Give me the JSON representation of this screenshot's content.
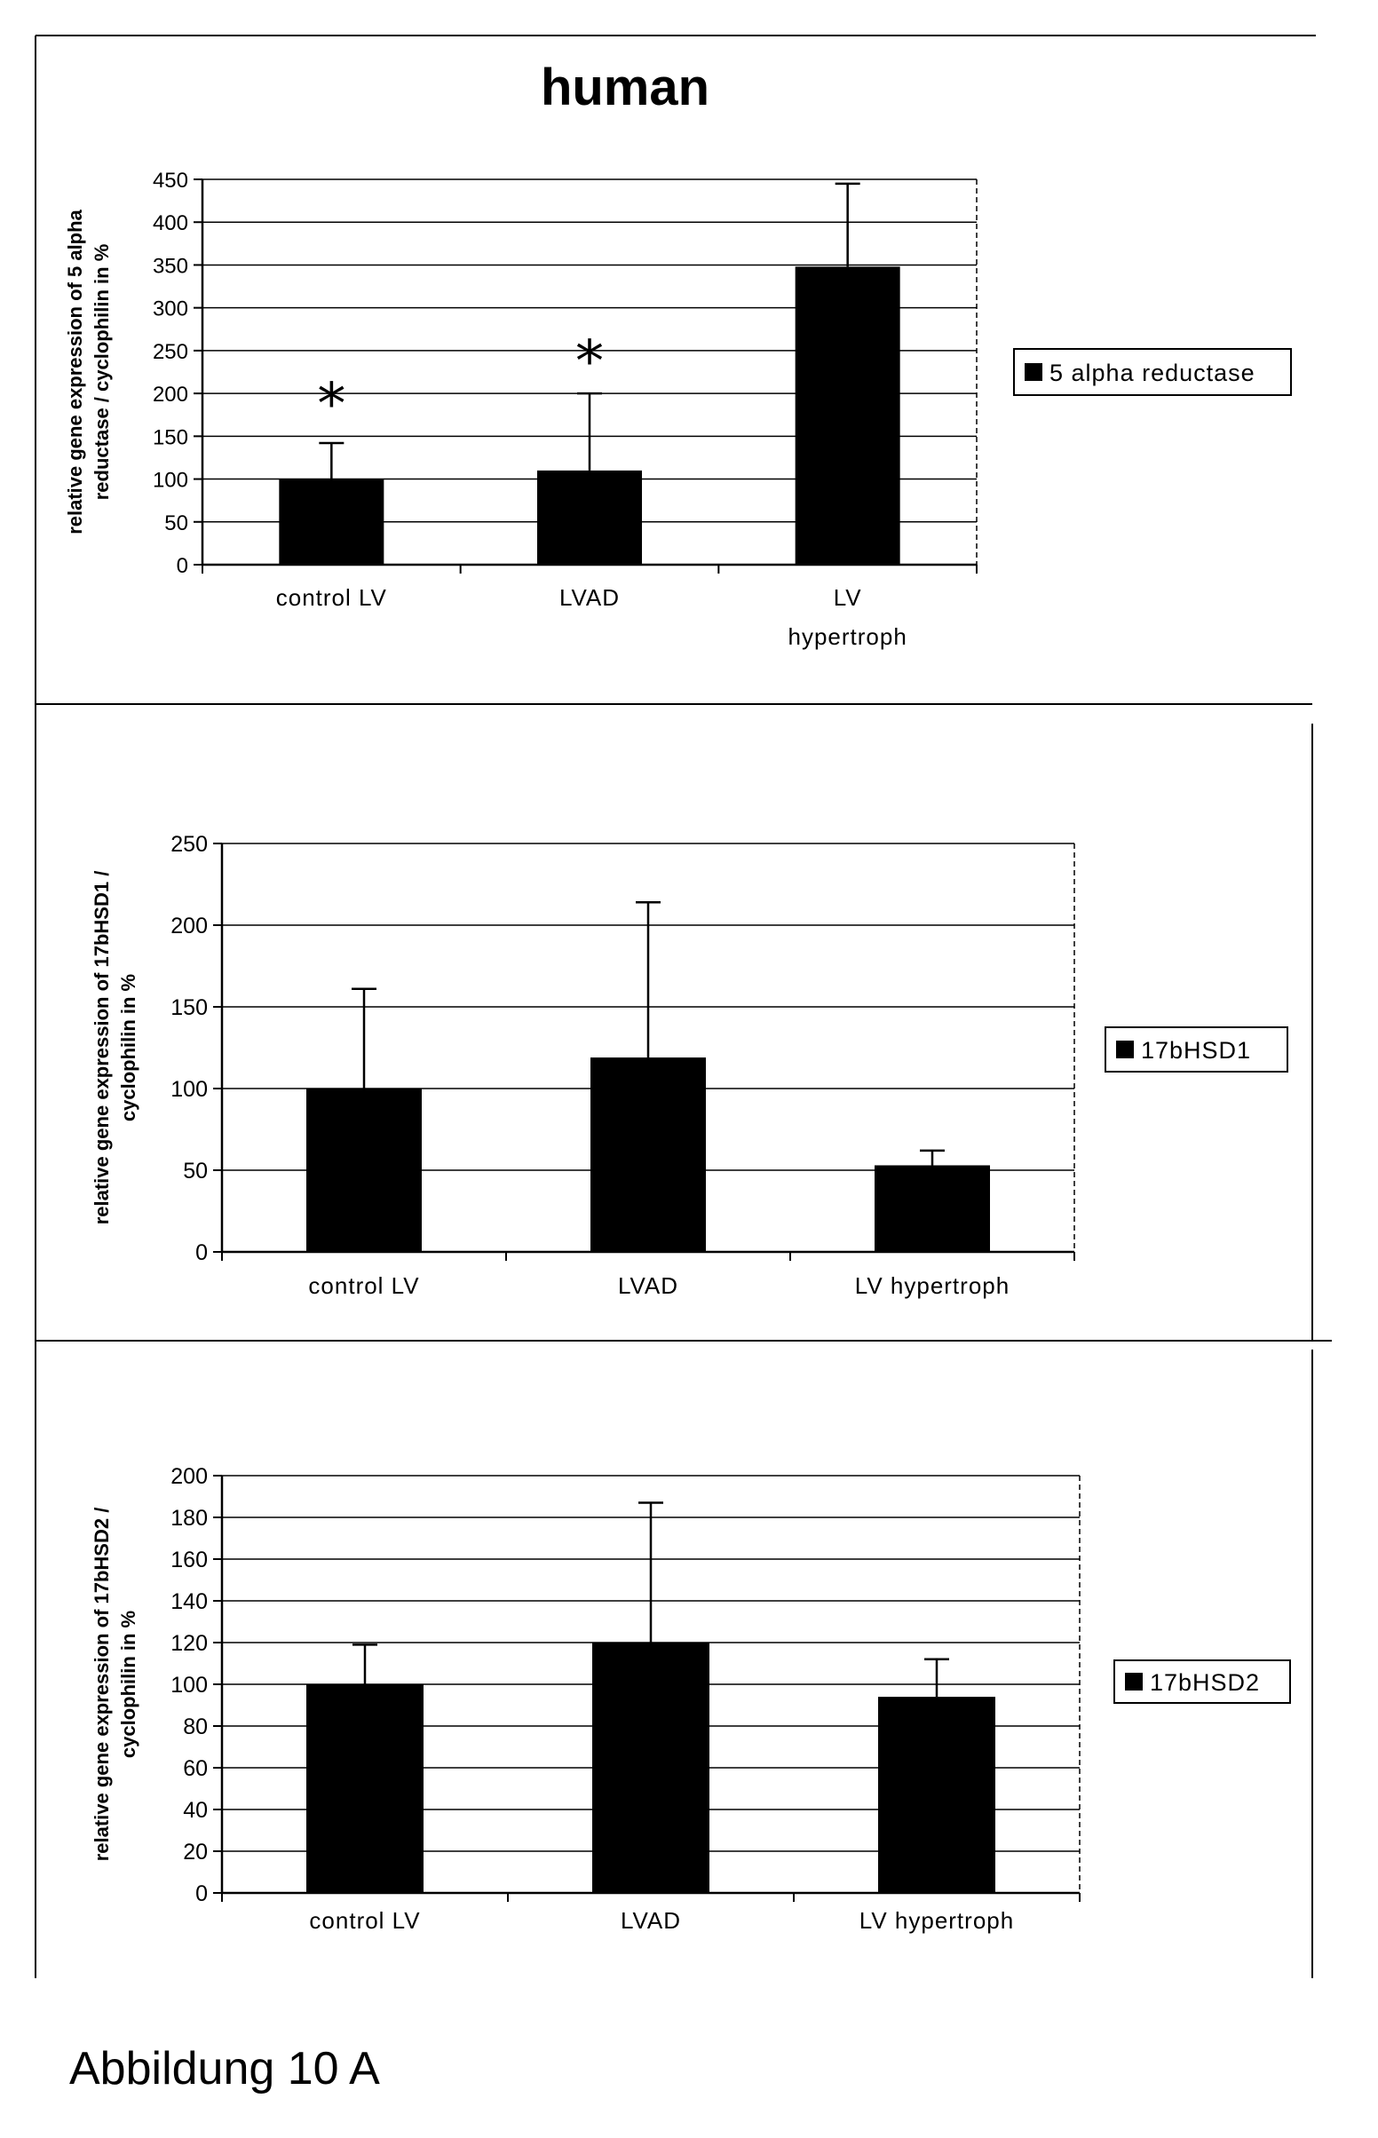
{
  "figure_label": "Abbildung 10 A",
  "chart_data": [
    {
      "type": "bar",
      "title": "human",
      "ylabel_lines": [
        "relative gene expression of 5 alpha",
        "reductase / cyclophilin in %"
      ],
      "categories": [
        [
          "control LV"
        ],
        [
          "LVAD"
        ],
        [
          "LV",
          "hypertroph"
        ]
      ],
      "ylim": [
        0,
        450
      ],
      "yticks": [
        0,
        50,
        100,
        150,
        200,
        250,
        300,
        350,
        400,
        450
      ],
      "grid": true,
      "legend_position": "right",
      "series": [
        {
          "name": "5 alpha reductase",
          "color": "#000000",
          "values": [
            100,
            110,
            348
          ],
          "errors": [
            42,
            90,
            97
          ]
        }
      ],
      "annotations": [
        {
          "text": "*",
          "category_index": 0,
          "y": 200
        },
        {
          "text": "*",
          "category_index": 1,
          "y": 250
        }
      ]
    },
    {
      "type": "bar",
      "title": "",
      "ylabel_lines": [
        "relative gene expression of 17bHSD1 /",
        "cyclophilin in %"
      ],
      "categories": [
        [
          "control LV"
        ],
        [
          "LVAD"
        ],
        [
          "LV hypertroph"
        ]
      ],
      "ylim": [
        0,
        250
      ],
      "yticks": [
        0,
        50,
        100,
        150,
        200,
        250
      ],
      "grid": true,
      "legend_position": "right",
      "series": [
        {
          "name": "17bHSD1",
          "color": "#000000",
          "values": [
            100,
            119,
            53
          ],
          "errors": [
            61,
            95,
            9
          ]
        }
      ],
      "annotations": []
    },
    {
      "type": "bar",
      "title": "",
      "ylabel_lines": [
        "relative gene expression of 17bHSD2 /",
        "cyclophilin in %"
      ],
      "categories": [
        [
          "control LV"
        ],
        [
          "LVAD"
        ],
        [
          "LV hypertroph"
        ]
      ],
      "ylim": [
        0,
        200
      ],
      "yticks": [
        0,
        20,
        40,
        60,
        80,
        100,
        120,
        140,
        160,
        180,
        200
      ],
      "grid": true,
      "legend_position": "right",
      "series": [
        {
          "name": "17bHSD2",
          "color": "#000000",
          "values": [
            100,
            120,
            94
          ],
          "errors": [
            19,
            67,
            18
          ]
        }
      ],
      "annotations": []
    }
  ]
}
